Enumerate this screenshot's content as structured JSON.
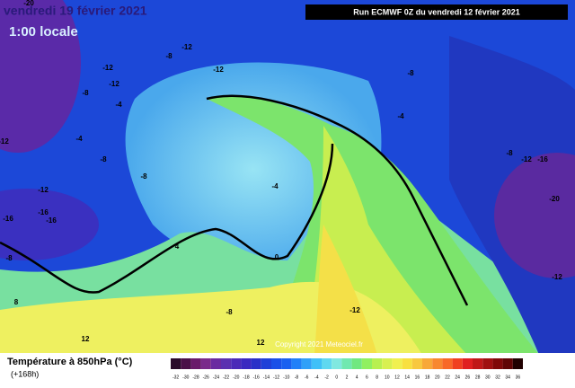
{
  "header": {
    "date": "vendredi 19 février 2021",
    "time": "1:00 locale",
    "run": "Run ECMWF 0Z du vendredi 12 février 2021"
  },
  "map_labels": [
    -20,
    -12,
    -8,
    -12,
    -12,
    -12,
    -8,
    -4,
    -4,
    -8,
    -8,
    -12,
    -16,
    -16,
    -16,
    -12,
    -4,
    4,
    0,
    -8,
    -8,
    -12,
    8,
    12,
    12,
    -8,
    -12,
    -16,
    -20,
    -12,
    -4,
    -8
  ],
  "copyright": "Copyright 2021 Meteociel.fr",
  "legend": {
    "title": "Température à 850hPa (°C)",
    "subtitle": "(+168h)",
    "labels": [
      -32,
      -30,
      -28,
      -26,
      -24,
      -22,
      -20,
      -18,
      -16,
      -14,
      -12,
      -10,
      -8,
      -6,
      -4,
      -2,
      0,
      2,
      4,
      6,
      8,
      10,
      12,
      14,
      16,
      18,
      20,
      22,
      24,
      26,
      28,
      30,
      32,
      34,
      36
    ],
    "colors": [
      "#2a0a2a",
      "#4a1048",
      "#6a1a6a",
      "#7a2a8a",
      "#6a2aa0",
      "#5a30b0",
      "#4a2ab8",
      "#3a28c0",
      "#2a30c8",
      "#2040d8",
      "#1a50e8",
      "#1a60f0",
      "#2080f8",
      "#30a0f8",
      "#40c0f8",
      "#60d8f0",
      "#80e8e0",
      "#70e8b0",
      "#70e880",
      "#90f060",
      "#b8f050",
      "#d8f050",
      "#f0f050",
      "#f8e040",
      "#f8c840",
      "#f8a838",
      "#f88830",
      "#f86828",
      "#f04020",
      "#e02020",
      "#c01818",
      "#a01010",
      "#800808",
      "#600404",
      "#200000"
    ]
  }
}
